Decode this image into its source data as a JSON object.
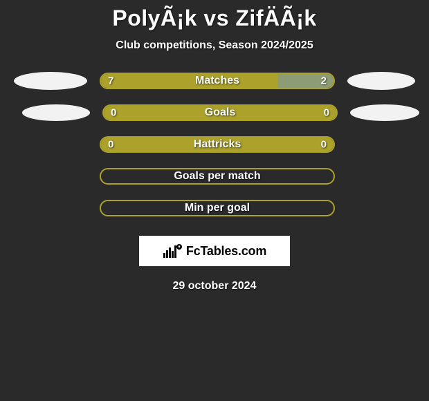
{
  "title": "PolyÃ¡k vs ZifÄÃ¡k",
  "subtitle": "Club competitions, Season 2024/2025",
  "accent_color": "#aba12b",
  "neutral_border": "#aba12b",
  "rows": [
    {
      "label": "Matches",
      "left_value": "7",
      "right_value": "2",
      "left_width_pct": 76,
      "right_width_pct": 24,
      "left_color": "#aba12b",
      "right_color": "#8e9c76",
      "border_color": "#aba12b",
      "left_oval": "big",
      "right_oval": "big"
    },
    {
      "label": "Goals",
      "left_value": "0",
      "right_value": "0",
      "left_width_pct": 50,
      "right_width_pct": 50,
      "left_color": "#aba12b",
      "right_color": "#aba12b",
      "border_color": "#aba12b",
      "left_oval": "small",
      "right_oval": "small"
    },
    {
      "label": "Hattricks",
      "left_value": "0",
      "right_value": "0",
      "left_width_pct": 50,
      "right_width_pct": 50,
      "left_color": "#aba12b",
      "right_color": "#aba12b",
      "border_color": "#aba12b",
      "left_oval": null,
      "right_oval": null
    },
    {
      "label": "Goals per match",
      "left_value": "",
      "right_value": "",
      "left_width_pct": 0,
      "right_width_pct": 0,
      "left_color": "transparent",
      "right_color": "transparent",
      "border_color": "#aba12b",
      "left_oval": null,
      "right_oval": null
    },
    {
      "label": "Min per goal",
      "left_value": "",
      "right_value": "",
      "left_width_pct": 0,
      "right_width_pct": 0,
      "left_color": "transparent",
      "right_color": "transparent",
      "border_color": "#aba12b",
      "left_oval": null,
      "right_oval": null
    }
  ],
  "brand": "FcTables.com",
  "date": "29 october 2024"
}
